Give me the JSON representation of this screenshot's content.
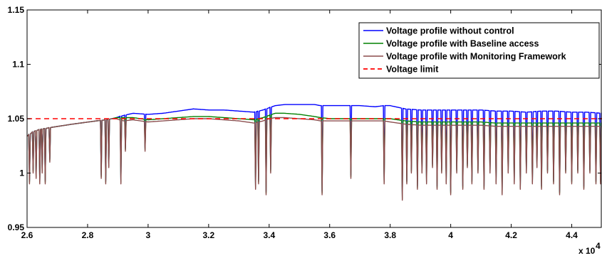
{
  "chart_data": {
    "type": "line",
    "xlim": [
      26000,
      45000
    ],
    "ylim": [
      0.95,
      1.15
    ],
    "x_ticks": [
      26000,
      28000,
      30000,
      32000,
      34000,
      36000,
      38000,
      40000,
      42000,
      44000
    ],
    "x_tick_labels": [
      "2.6",
      "2.8",
      "3",
      "3.2",
      "3.4",
      "3.6",
      "3.8",
      "4",
      "4.2",
      "4.4"
    ],
    "y_ticks": [
      0.95,
      1.0,
      1.05,
      1.1,
      1.15
    ],
    "y_tick_labels": [
      "0.95",
      "1",
      "1.05",
      "1.1",
      "1.15"
    ],
    "x_multiplier_label": "x 10",
    "x_multiplier_exp": "4",
    "grid": false,
    "legend_position": "top-right",
    "series": [
      {
        "name": "Voltage profile without control",
        "color": "#0000ff",
        "style": "solid",
        "x": [
          26000,
          26200,
          26400,
          26800,
          27500,
          28300,
          28600,
          28800,
          28950,
          29050,
          29200,
          29500,
          30000,
          30500,
          31000,
          31500,
          32000,
          32500,
          33000,
          33500,
          33800,
          34000,
          34200,
          34500,
          35000,
          35500,
          35700,
          36000,
          36500,
          37000,
          37500,
          37800,
          38000,
          38500,
          39000,
          39500,
          40000,
          40500,
          41000,
          41500,
          42000,
          42500,
          43000,
          43500,
          44000,
          44500,
          45000
        ],
        "y": [
          1.034,
          1.038,
          1.04,
          1.042,
          1.045,
          1.048,
          1.049,
          1.05,
          1.051,
          1.052,
          1.053,
          1.055,
          1.054,
          1.055,
          1.057,
          1.059,
          1.058,
          1.058,
          1.057,
          1.056,
          1.058,
          1.06,
          1.062,
          1.063,
          1.063,
          1.063,
          1.062,
          1.062,
          1.062,
          1.062,
          1.061,
          1.062,
          1.062,
          1.059,
          1.058,
          1.058,
          1.058,
          1.058,
          1.058,
          1.057,
          1.057,
          1.056,
          1.057,
          1.057,
          1.056,
          1.056,
          1.055
        ]
      },
      {
        "name": "Voltage profile with Baseline access",
        "color": "#008000",
        "style": "solid",
        "x": [
          26000,
          26200,
          26400,
          26800,
          27500,
          28300,
          28600,
          28800,
          28950,
          29050,
          29200,
          29500,
          30000,
          30500,
          31000,
          31500,
          32000,
          32500,
          33000,
          33500,
          33800,
          34000,
          34200,
          34500,
          35000,
          35500,
          35700,
          36000,
          36500,
          37000,
          37500,
          37800,
          38000,
          38500,
          39000,
          39500,
          40000,
          40500,
          41000,
          41500,
          42000,
          42500,
          43000,
          43500,
          44000,
          44500,
          45000
        ],
        "y": [
          1.034,
          1.038,
          1.04,
          1.042,
          1.045,
          1.048,
          1.049,
          1.05,
          1.051,
          1.051,
          1.051,
          1.051,
          1.049,
          1.05,
          1.051,
          1.052,
          1.052,
          1.051,
          1.05,
          1.049,
          1.051,
          1.053,
          1.055,
          1.055,
          1.054,
          1.052,
          1.051,
          1.05,
          1.05,
          1.05,
          1.05,
          1.05,
          1.05,
          1.048,
          1.047,
          1.047,
          1.047,
          1.047,
          1.047,
          1.046,
          1.046,
          1.046,
          1.046,
          1.046,
          1.046,
          1.046,
          1.046
        ]
      },
      {
        "name": "Voltage profile with Monitoring Framework",
        "color": "#8b4c4c",
        "style": "solid",
        "x": [
          26000,
          26200,
          26400,
          26800,
          27500,
          28300,
          28600,
          28800,
          28950,
          29050,
          29200,
          29500,
          30000,
          30500,
          31000,
          31500,
          32000,
          32500,
          33000,
          33500,
          33800,
          34000,
          34200,
          34500,
          35000,
          35500,
          35700,
          36000,
          36500,
          37000,
          37500,
          37800,
          38000,
          38500,
          39000,
          39500,
          40000,
          40500,
          41000,
          41500,
          42000,
          42500,
          43000,
          43500,
          44000,
          44500,
          45000
        ],
        "y": [
          1.034,
          1.038,
          1.04,
          1.042,
          1.045,
          1.048,
          1.049,
          1.05,
          1.05,
          1.049,
          1.048,
          1.049,
          1.047,
          1.048,
          1.049,
          1.05,
          1.05,
          1.049,
          1.048,
          1.046,
          1.048,
          1.05,
          1.051,
          1.051,
          1.05,
          1.049,
          1.048,
          1.048,
          1.048,
          1.048,
          1.048,
          1.048,
          1.047,
          1.045,
          1.044,
          1.044,
          1.044,
          1.044,
          1.044,
          1.043,
          1.043,
          1.043,
          1.043,
          1.043,
          1.043,
          1.043,
          1.043
        ]
      },
      {
        "name": "Voltage limit",
        "color": "#ff0000",
        "style": "dashed",
        "x": [
          26000,
          45000
        ],
        "y": [
          1.05,
          1.05
        ]
      }
    ],
    "dips": [
      {
        "x": 26080,
        "depth": 0.99
      },
      {
        "x": 26200,
        "depth": 1.0
      },
      {
        "x": 26300,
        "depth": 0.995
      },
      {
        "x": 26420,
        "depth": 0.99
      },
      {
        "x": 26500,
        "depth": 1.0
      },
      {
        "x": 26600,
        "depth": 0.99
      },
      {
        "x": 26750,
        "depth": 1.01
      },
      {
        "x": 28450,
        "depth": 0.995
      },
      {
        "x": 28600,
        "depth": 0.99
      },
      {
        "x": 28700,
        "depth": 1.005
      },
      {
        "x": 29100,
        "depth": 0.99
      },
      {
        "x": 29250,
        "depth": 1.02
      },
      {
        "x": 29900,
        "depth": 1.02
      },
      {
        "x": 33550,
        "depth": 0.985
      },
      {
        "x": 33650,
        "depth": 0.99
      },
      {
        "x": 33900,
        "depth": 0.98
      },
      {
        "x": 34050,
        "depth": 1.0
      },
      {
        "x": 35750,
        "depth": 0.98
      },
      {
        "x": 36700,
        "depth": 0.995
      },
      {
        "x": 37800,
        "depth": 0.99
      },
      {
        "x": 38400,
        "depth": 0.975
      },
      {
        "x": 38550,
        "depth": 0.99
      },
      {
        "x": 38700,
        "depth": 1.0
      },
      {
        "x": 38900,
        "depth": 0.985
      },
      {
        "x": 39050,
        "depth": 1.0
      },
      {
        "x": 39200,
        "depth": 0.99
      },
      {
        "x": 39400,
        "depth": 1.005
      },
      {
        "x": 39550,
        "depth": 0.985
      },
      {
        "x": 39700,
        "depth": 1.0
      },
      {
        "x": 39850,
        "depth": 0.99
      },
      {
        "x": 40000,
        "depth": 0.98
      },
      {
        "x": 40200,
        "depth": 1.0
      },
      {
        "x": 40400,
        "depth": 0.985
      },
      {
        "x": 40550,
        "depth": 1.005
      },
      {
        "x": 40700,
        "depth": 0.99
      },
      {
        "x": 40900,
        "depth": 1.0
      },
      {
        "x": 41100,
        "depth": 0.985
      },
      {
        "x": 41300,
        "depth": 1.0
      },
      {
        "x": 41500,
        "depth": 0.99
      },
      {
        "x": 41700,
        "depth": 0.98
      },
      {
        "x": 41900,
        "depth": 1.0
      },
      {
        "x": 42100,
        "depth": 0.99
      },
      {
        "x": 42300,
        "depth": 0.985
      },
      {
        "x": 42500,
        "depth": 1.0
      },
      {
        "x": 42700,
        "depth": 0.99
      },
      {
        "x": 42850,
        "depth": 1.005
      },
      {
        "x": 43000,
        "depth": 0.985
      },
      {
        "x": 43200,
        "depth": 1.0
      },
      {
        "x": 43400,
        "depth": 0.99
      },
      {
        "x": 43600,
        "depth": 0.98
      },
      {
        "x": 43800,
        "depth": 1.0
      },
      {
        "x": 44000,
        "depth": 0.99
      },
      {
        "x": 44200,
        "depth": 1.0
      },
      {
        "x": 44400,
        "depth": 0.985
      },
      {
        "x": 44600,
        "depth": 1.0
      },
      {
        "x": 44800,
        "depth": 0.99
      },
      {
        "x": 44950,
        "depth": 0.99
      }
    ]
  }
}
